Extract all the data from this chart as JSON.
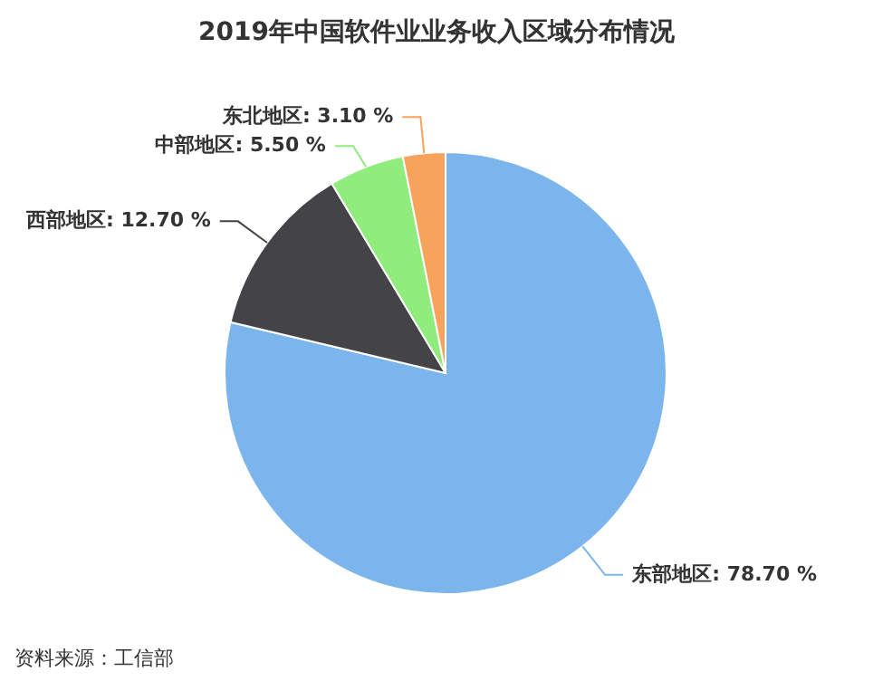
{
  "chart_data": {
    "type": "pie",
    "title": "2019年中国软件业业务收入区域分布情况",
    "categories": [
      "东部地区",
      "西部地区",
      "中部地区",
      "东北地区"
    ],
    "values": [
      78.7,
      12.7,
      5.5,
      3.1
    ],
    "colors": [
      "#7cb5ec",
      "#434348",
      "#90ed7d",
      "#f7a35c"
    ],
    "value_labels": [
      "78.70 %",
      "12.70 %",
      "5.50 %",
      "3.10 %"
    ],
    "annotations": [
      "资料来源：工信部"
    ]
  }
}
